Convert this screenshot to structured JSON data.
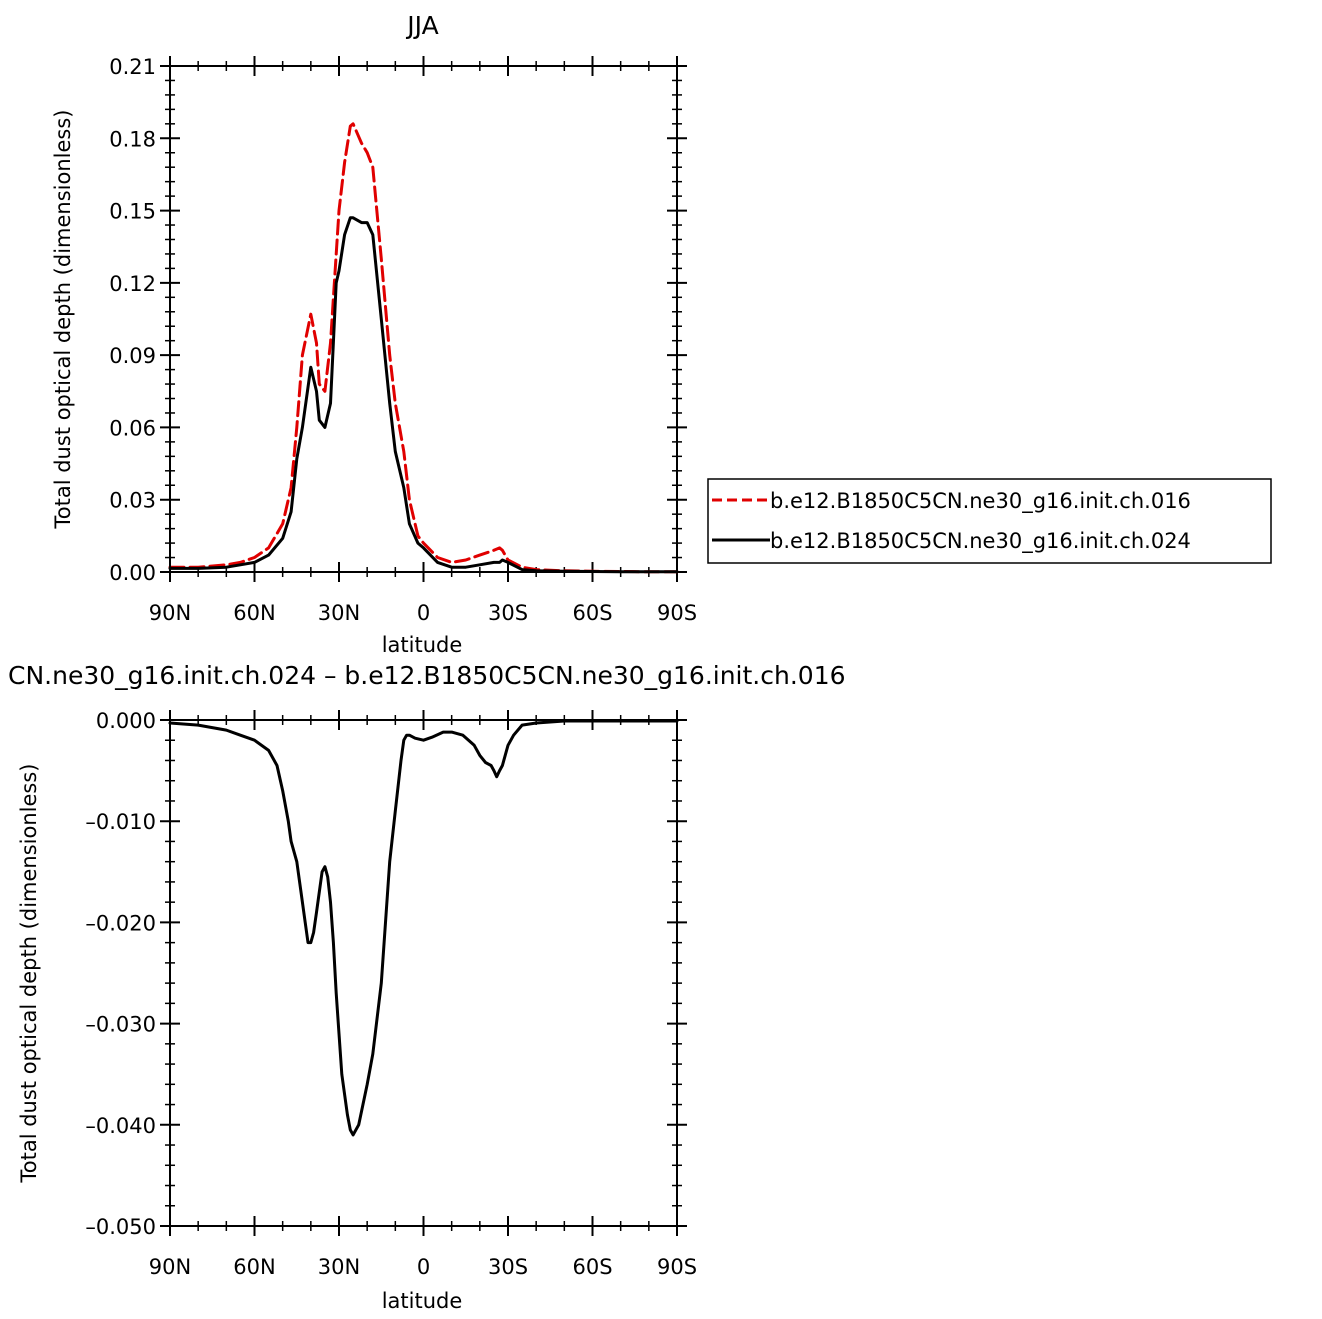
{
  "chart_data": [
    {
      "type": "line",
      "title": "JJA",
      "xlabel": "latitude",
      "ylabel": "Total dust optical depth (dimensionless)",
      "xlim": [
        90,
        -90
      ],
      "ylim": [
        0,
        0.21
      ],
      "x_ticks": [
        90,
        60,
        30,
        0,
        -30,
        -60,
        -90
      ],
      "x_tick_labels": [
        "90N",
        "60N",
        "30N",
        "0",
        "30S",
        "60S",
        "90S"
      ],
      "y_ticks": [
        0,
        0.03,
        0.06,
        0.09,
        0.12,
        0.15,
        0.18,
        0.21
      ],
      "y_tick_labels": [
        "0.00",
        "0.03",
        "0.06",
        "0.09",
        "0.12",
        "0.15",
        "0.18",
        "0.21"
      ],
      "legend_position": "right",
      "series": [
        {
          "name": "b.e12.B1850C5CN.ne30_g16.init.ch.016",
          "color": "#e00000",
          "style": "dashed",
          "x": [
            90,
            80,
            70,
            65,
            60,
            55,
            50,
            47,
            45,
            43,
            40,
            38,
            37,
            35,
            33,
            30,
            28,
            26,
            25,
            22,
            20,
            18,
            15,
            12,
            10,
            7,
            5,
            2,
            0,
            -5,
            -10,
            -15,
            -20,
            -25,
            -27,
            -28,
            -30,
            -35,
            -40,
            -50,
            -60,
            -70,
            -80,
            -90
          ],
          "y": [
            0.002,
            0.002,
            0.003,
            0.004,
            0.006,
            0.01,
            0.02,
            0.035,
            0.06,
            0.09,
            0.107,
            0.095,
            0.078,
            0.075,
            0.095,
            0.15,
            0.17,
            0.185,
            0.186,
            0.178,
            0.174,
            0.168,
            0.13,
            0.09,
            0.07,
            0.05,
            0.03,
            0.015,
            0.012,
            0.006,
            0.004,
            0.005,
            0.007,
            0.009,
            0.01,
            0.009,
            0.005,
            0.002,
            0.001,
            0.0005,
            0.0003,
            0.0002,
            0.0001,
            0.0001
          ]
        },
        {
          "name": "b.e12.B1850C5CN.ne30_g16.init.ch.024",
          "color": "#000000",
          "style": "solid",
          "x": [
            90,
            80,
            70,
            65,
            60,
            55,
            50,
            47,
            45,
            43,
            40,
            38,
            37,
            35,
            33,
            31,
            30,
            28,
            26,
            25,
            22,
            20,
            18,
            15,
            12,
            10,
            7,
            5,
            2,
            0,
            -5,
            -10,
            -15,
            -20,
            -25,
            -27,
            -28,
            -30,
            -35,
            -40,
            -50,
            -60,
            -70,
            -80,
            -90
          ],
          "y": [
            0.0015,
            0.0015,
            0.002,
            0.003,
            0.004,
            0.007,
            0.014,
            0.025,
            0.047,
            0.06,
            0.085,
            0.075,
            0.063,
            0.06,
            0.07,
            0.12,
            0.125,
            0.14,
            0.147,
            0.147,
            0.145,
            0.145,
            0.14,
            0.105,
            0.07,
            0.05,
            0.035,
            0.02,
            0.012,
            0.01,
            0.004,
            0.002,
            0.002,
            0.003,
            0.004,
            0.004,
            0.005,
            0.004,
            0.001,
            0.0005,
            0.0003,
            0.0002,
            0.0001,
            0.0001,
            0.0001
          ]
        }
      ]
    },
    {
      "type": "line",
      "title": "CN.ne30_g16.init.ch.024 – b.e12.B1850C5CN.ne30_g16.init.ch.016",
      "xlabel": "latitude",
      "ylabel": "Total dust optical depth (dimensionless)",
      "xlim": [
        90,
        -90
      ],
      "ylim": [
        -0.05,
        0.0
      ],
      "x_ticks": [
        90,
        60,
        30,
        0,
        -30,
        -60,
        -90
      ],
      "x_tick_labels": [
        "90N",
        "60N",
        "30N",
        "0",
        "30S",
        "60S",
        "90S"
      ],
      "y_ticks": [
        0,
        -0.01,
        -0.02,
        -0.03,
        -0.04,
        -0.05
      ],
      "y_tick_labels": [
        "0.000",
        "–0.010",
        "–0.020",
        "–0.030",
        "–0.040",
        "–0.050"
      ],
      "series": [
        {
          "color": "#000000",
          "style": "solid",
          "x": [
            90,
            80,
            70,
            65,
            60,
            55,
            52,
            50,
            48,
            47,
            45,
            44,
            42,
            41,
            40,
            39,
            38,
            37,
            36,
            35,
            34,
            33,
            32,
            31,
            30,
            29,
            28,
            27,
            26,
            25,
            23,
            20,
            18,
            15,
            12,
            10,
            8,
            7,
            6,
            5,
            3,
            0,
            -3,
            -7,
            -10,
            -14,
            -18,
            -20,
            -22,
            -24,
            -25,
            -26,
            -27,
            -28,
            -30,
            -32,
            -35,
            -40,
            -45,
            -50,
            -60,
            -70,
            -80,
            -90
          ],
          "y": [
            -0.0003,
            -0.0005,
            -0.001,
            -0.0015,
            -0.002,
            -0.003,
            -0.0045,
            -0.007,
            -0.01,
            -0.012,
            -0.014,
            -0.016,
            -0.02,
            -0.022,
            -0.022,
            -0.021,
            -0.019,
            -0.017,
            -0.015,
            -0.0145,
            -0.0155,
            -0.018,
            -0.022,
            -0.027,
            -0.031,
            -0.035,
            -0.037,
            -0.039,
            -0.0405,
            -0.041,
            -0.04,
            -0.036,
            -0.033,
            -0.026,
            -0.014,
            -0.009,
            -0.004,
            -0.002,
            -0.0015,
            -0.0015,
            -0.0018,
            -0.002,
            -0.0017,
            -0.0012,
            -0.0012,
            -0.0015,
            -0.0025,
            -0.0035,
            -0.0042,
            -0.0045,
            -0.005,
            -0.0056,
            -0.005,
            -0.0045,
            -0.0025,
            -0.0015,
            -0.0005,
            -0.0003,
            -0.0002,
            -0.0001,
            -0.0001,
            -0.0001,
            -0.0001,
            -0.0001
          ]
        }
      ]
    }
  ]
}
